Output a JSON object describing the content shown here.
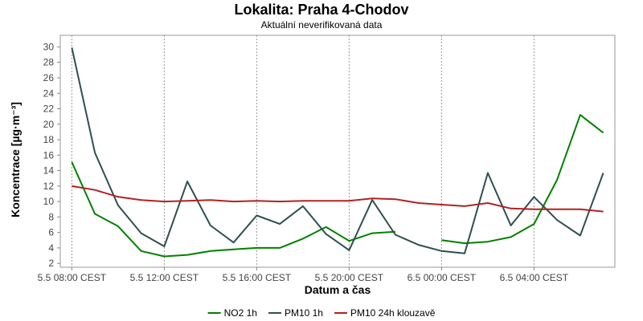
{
  "chart_data": {
    "type": "line",
    "title": "Lokalita: Praha 4-Chodov",
    "subtitle": "Aktuální neverifikovaná data",
    "xlabel": "Datum a čas",
    "ylabel": "Koncentrace [µg·m⁻³]",
    "ylim": [
      1.5,
      31.5
    ],
    "y_ticks": [
      2,
      4,
      6,
      8,
      10,
      12,
      14,
      16,
      18,
      20,
      22,
      24,
      26,
      28,
      30
    ],
    "x_ticks": [
      {
        "hour": 0,
        "label": "5.5 08:00 CEST"
      },
      {
        "hour": 4,
        "label": "5.5 12:00 CEST"
      },
      {
        "hour": 8,
        "label": "5.5 16:00 CEST"
      },
      {
        "hour": 12,
        "label": "5.5 20:00 CEST"
      },
      {
        "hour": 16,
        "label": "6.5 00:00 CEST"
      },
      {
        "hour": 20,
        "label": "6.5 04:00 CEST"
      }
    ],
    "x_range": [
      -0.5,
      23.5
    ],
    "grid": true,
    "legend_position": "bottom",
    "series": [
      {
        "name": "NO2 1h",
        "color": "#008000",
        "values": [
          [
            0,
            15.1
          ],
          [
            1,
            8.4
          ],
          [
            2,
            6.8
          ],
          [
            3,
            3.6
          ],
          [
            4,
            2.9
          ],
          [
            5,
            3.1
          ],
          [
            6,
            3.6
          ],
          [
            7,
            3.8
          ],
          [
            8,
            4.0
          ],
          [
            9,
            4.0
          ],
          [
            10,
            5.2
          ],
          [
            11,
            6.7
          ],
          [
            12,
            4.9
          ],
          [
            13,
            5.9
          ],
          [
            14,
            6.1
          ],
          null,
          [
            16,
            5.0
          ],
          [
            17,
            4.6
          ],
          [
            18,
            4.8
          ],
          [
            19,
            5.4
          ],
          [
            20,
            7.1
          ],
          [
            21,
            12.8
          ],
          [
            22,
            21.2
          ],
          [
            23,
            18.9
          ]
        ]
      },
      {
        "name": "PM10 1h",
        "color": "#2f4f4f",
        "values": [
          [
            0,
            29.9
          ],
          [
            1,
            16.3
          ],
          [
            2,
            9.5
          ],
          [
            3,
            5.9
          ],
          [
            4,
            4.2
          ],
          [
            5,
            12.6
          ],
          [
            6,
            6.9
          ],
          [
            7,
            4.7
          ],
          [
            8,
            8.2
          ],
          [
            9,
            7.1
          ],
          [
            10,
            9.4
          ],
          [
            11,
            5.8
          ],
          [
            12,
            3.7
          ],
          [
            13,
            10.2
          ],
          [
            14,
            5.7
          ],
          [
            15,
            4.4
          ],
          [
            16,
            3.6
          ],
          [
            17,
            3.3
          ],
          [
            18,
            13.7
          ],
          [
            19,
            6.9
          ],
          [
            20,
            10.6
          ],
          [
            21,
            7.6
          ],
          [
            22,
            5.6
          ],
          [
            23,
            13.7
          ]
        ]
      },
      {
        "name": "PM10 24h klouzavě",
        "color": "#b22222",
        "values": [
          [
            0,
            12.0
          ],
          [
            1,
            11.5
          ],
          [
            2,
            10.6
          ],
          [
            3,
            10.2
          ],
          [
            4,
            10.0
          ],
          [
            5,
            10.1
          ],
          [
            6,
            10.2
          ],
          [
            7,
            10.0
          ],
          [
            8,
            10.1
          ],
          [
            9,
            10.0
          ],
          [
            10,
            10.1
          ],
          [
            11,
            10.1
          ],
          [
            12,
            10.1
          ],
          [
            13,
            10.4
          ],
          [
            14,
            10.3
          ],
          [
            15,
            9.8
          ],
          [
            16,
            9.6
          ],
          [
            17,
            9.4
          ],
          [
            18,
            9.8
          ],
          [
            19,
            9.1
          ],
          [
            20,
            9.0
          ],
          [
            21,
            9.0
          ],
          [
            22,
            9.0
          ],
          [
            23,
            8.7
          ]
        ]
      }
    ]
  }
}
